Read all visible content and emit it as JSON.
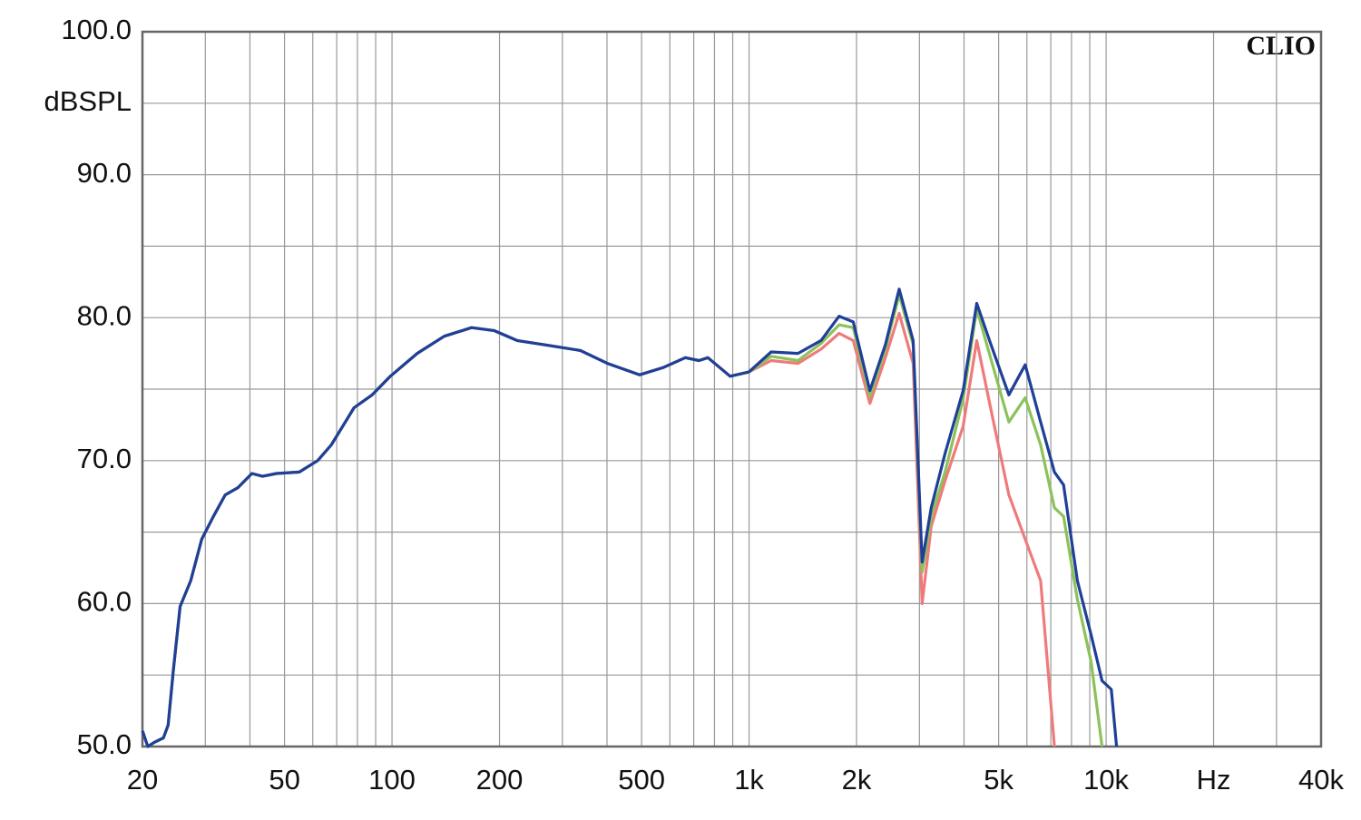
{
  "chart_data": {
    "type": "line",
    "y_label": "dBSPL",
    "watermark": "CLIO",
    "log_x": true,
    "grid": true,
    "x": [
      20,
      20.7,
      21.6,
      22.9,
      23.6,
      24.4,
      25.5,
      27.3,
      29.3,
      31.6,
      34.1,
      37,
      40.5,
      43.4,
      47.5,
      55,
      61.9,
      67.6,
      78.3,
      88,
      98.9,
      117.6,
      140,
      167,
      193,
      224,
      267,
      337,
      401,
      494,
      573,
      663,
      724,
      767,
      885,
      999,
      1153,
      1371,
      1591,
      1787,
      1958,
      2179,
      2409,
      2633,
      2881,
      3053,
      3236,
      3539,
      3976,
      4342,
      4746,
      5341,
      5933,
      6554,
      7166,
      7602,
      8306,
      9081,
      9744,
      10340,
      10700
    ],
    "series": [
      {
        "color": "#f07a7a",
        "values": [
          51.1,
          50,
          50.3,
          50.6,
          51.5,
          55.3,
          59.8,
          61.6,
          64.5,
          66.1,
          67.6,
          68.1,
          69.1,
          68.9,
          69.1,
          69.2,
          70,
          71.1,
          73.7,
          74.6,
          75.9,
          77.5,
          78.7,
          79.3,
          79.1,
          78.4,
          78.1,
          77.7,
          76.8,
          76,
          76.5,
          77.2,
          77,
          77.2,
          75.9,
          76.2,
          77.0,
          76.8,
          77.8,
          78.9,
          78.4,
          74.0,
          77.2,
          80.3,
          76.8,
          60.0,
          65.4,
          68.6,
          72.4,
          78.4,
          73.7,
          67.6,
          64.5,
          61.6,
          50,
          null,
          null,
          null,
          null,
          null,
          null
        ]
      },
      {
        "color": "#8cc25a",
        "values": [
          51.1,
          50,
          50.3,
          50.6,
          51.5,
          55.3,
          59.8,
          61.6,
          64.5,
          66.1,
          67.6,
          68.1,
          69.1,
          68.9,
          69.1,
          69.2,
          70,
          71.1,
          73.7,
          74.6,
          75.9,
          77.5,
          78.7,
          79.3,
          79.1,
          78.4,
          78.1,
          77.7,
          76.8,
          76,
          76.5,
          77.2,
          77,
          77.2,
          75.9,
          76.2,
          77.3,
          77.0,
          78.2,
          79.5,
          79.3,
          74.5,
          77.8,
          81.6,
          78.1,
          62.2,
          66.1,
          69.2,
          74.3,
          80.6,
          77.2,
          72.7,
          74.4,
          71.1,
          66.7,
          66.1,
          60.3,
          55.9,
          50,
          null,
          null
        ]
      },
      {
        "color": "#1f3f99",
        "values": [
          51.1,
          50,
          50.3,
          50.6,
          51.5,
          55.3,
          59.8,
          61.6,
          64.5,
          66.1,
          67.6,
          68.1,
          69.1,
          68.9,
          69.1,
          69.2,
          70,
          71.1,
          73.7,
          74.6,
          75.9,
          77.5,
          78.7,
          79.3,
          79.1,
          78.4,
          78.1,
          77.7,
          76.8,
          76,
          76.5,
          77.2,
          77,
          77.2,
          75.9,
          76.2,
          77.6,
          77.5,
          78.4,
          80.1,
          79.7,
          74.9,
          78.1,
          82,
          78.4,
          62.9,
          66.7,
          70.5,
          74.9,
          81,
          78.2,
          74.6,
          76.7,
          72.7,
          69.2,
          68.3,
          61.6,
          57.8,
          54.6,
          54,
          50
        ]
      }
    ],
    "xlim": [
      20,
      40000
    ],
    "ylim": [
      50,
      100
    ],
    "xticks": [
      20,
      50,
      100,
      200,
      500,
      {
        "value": 1000,
        "label": "1k"
      },
      {
        "value": 2000,
        "label": "2k"
      },
      {
        "value": 5000,
        "label": "5k"
      },
      {
        "value": 10000,
        "label": "10k"
      },
      {
        "value": 20000,
        "label": "Hz"
      },
      {
        "value": 40000,
        "label": "40k"
      }
    ],
    "yticks": [
      {
        "value": 50,
        "label": "50.0"
      },
      {
        "value": 60,
        "label": "60.0"
      },
      {
        "value": 70,
        "label": "70.0"
      },
      {
        "value": 80,
        "label": "80.0"
      },
      {
        "value": 90,
        "label": "90.0"
      },
      {
        "value": 100,
        "label": "100.0"
      }
    ],
    "xgrid": [
      20,
      30,
      40,
      50,
      60,
      70,
      80,
      90,
      100,
      200,
      300,
      400,
      500,
      600,
      700,
      800,
      900,
      1000,
      2000,
      3000,
      4000,
      5000,
      6000,
      7000,
      8000,
      9000,
      10000,
      20000,
      30000,
      40000
    ],
    "ygrid": [
      50,
      55,
      60,
      65,
      70,
      75,
      80,
      85,
      90,
      95,
      100
    ]
  }
}
